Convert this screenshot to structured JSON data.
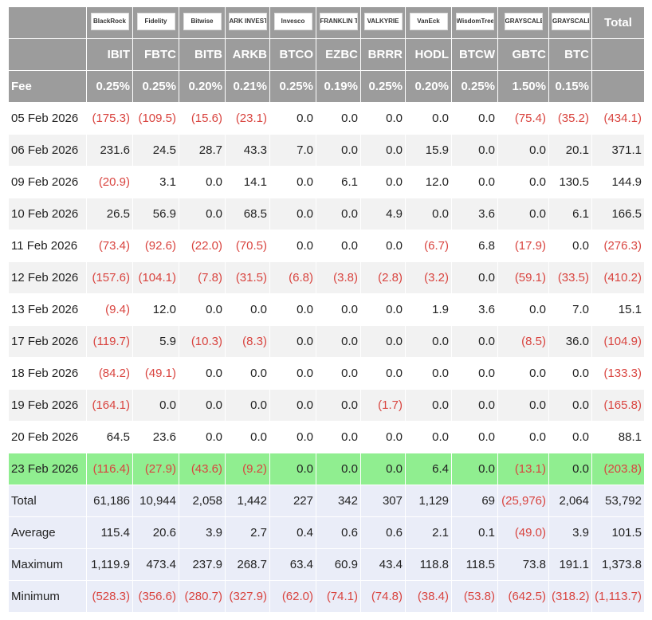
{
  "header": {
    "logos": [
      "BlackRock",
      "Fidelity",
      "Bitwise",
      "ARK INVEST",
      "Invesco",
      "FRANKLIN TEMPLETON",
      "VALKYRIE",
      "VanEck",
      "WisdomTree",
      "GRAYSCALE",
      "GRAYSCALE"
    ],
    "total_label": "Total",
    "tickers": [
      "IBIT",
      "FBTC",
      "BITB",
      "ARKB",
      "BTCO",
      "EZBC",
      "BRRR",
      "HODL",
      "BTCW",
      "GBTC",
      "BTC"
    ],
    "fee_label": "Fee",
    "fees": [
      "0.25%",
      "0.25%",
      "0.20%",
      "0.21%",
      "0.25%",
      "0.19%",
      "0.25%",
      "0.20%",
      "0.25%",
      "1.50%",
      "0.15%"
    ]
  },
  "rows": [
    {
      "label": "05 Feb 2026",
      "values": [
        "(175.3)",
        "(109.5)",
        "(15.6)",
        "(23.1)",
        "0.0",
        "0.0",
        "0.0",
        "0.0",
        "0.0",
        "(75.4)",
        "(35.2)",
        "(434.1)"
      ]
    },
    {
      "label": "06 Feb 2026",
      "values": [
        "231.6",
        "24.5",
        "28.7",
        "43.3",
        "7.0",
        "0.0",
        "0.0",
        "15.9",
        "0.0",
        "0.0",
        "20.1",
        "371.1"
      ]
    },
    {
      "label": "09 Feb 2026",
      "values": [
        "(20.9)",
        "3.1",
        "0.0",
        "14.1",
        "0.0",
        "6.1",
        "0.0",
        "12.0",
        "0.0",
        "0.0",
        "130.5",
        "144.9"
      ]
    },
    {
      "label": "10 Feb 2026",
      "values": [
        "26.5",
        "56.9",
        "0.0",
        "68.5",
        "0.0",
        "0.0",
        "4.9",
        "0.0",
        "3.6",
        "0.0",
        "6.1",
        "166.5"
      ]
    },
    {
      "label": "11 Feb 2026",
      "values": [
        "(73.4)",
        "(92.6)",
        "(22.0)",
        "(70.5)",
        "0.0",
        "0.0",
        "0.0",
        "(6.7)",
        "6.8",
        "(17.9)",
        "0.0",
        "(276.3)"
      ]
    },
    {
      "label": "12 Feb 2026",
      "values": [
        "(157.6)",
        "(104.1)",
        "(7.8)",
        "(31.5)",
        "(6.8)",
        "(3.8)",
        "(2.8)",
        "(3.2)",
        "0.0",
        "(59.1)",
        "(33.5)",
        "(410.2)"
      ]
    },
    {
      "label": "13 Feb 2026",
      "values": [
        "(9.4)",
        "12.0",
        "0.0",
        "0.0",
        "0.0",
        "0.0",
        "0.0",
        "1.9",
        "3.6",
        "0.0",
        "7.0",
        "15.1"
      ]
    },
    {
      "label": "17 Feb 2026",
      "values": [
        "(119.7)",
        "5.9",
        "(10.3)",
        "(8.3)",
        "0.0",
        "0.0",
        "0.0",
        "0.0",
        "0.0",
        "(8.5)",
        "36.0",
        "(104.9)"
      ]
    },
    {
      "label": "18 Feb 2026",
      "values": [
        "(84.2)",
        "(49.1)",
        "0.0",
        "0.0",
        "0.0",
        "0.0",
        "0.0",
        "0.0",
        "0.0",
        "0.0",
        "0.0",
        "(133.3)"
      ]
    },
    {
      "label": "19 Feb 2026",
      "values": [
        "(164.1)",
        "0.0",
        "0.0",
        "0.0",
        "0.0",
        "0.0",
        "(1.7)",
        "0.0",
        "0.0",
        "0.0",
        "0.0",
        "(165.8)"
      ]
    },
    {
      "label": "20 Feb 2026",
      "values": [
        "64.5",
        "23.6",
        "0.0",
        "0.0",
        "0.0",
        "0.0",
        "0.0",
        "0.0",
        "0.0",
        "0.0",
        "0.0",
        "88.1"
      ]
    },
    {
      "label": "23 Feb 2026",
      "highlight_color": "#90ee90",
      "values": [
        "(116.4)",
        "(27.9)",
        "(43.6)",
        "(9.2)",
        "0.0",
        "0.0",
        "0.0",
        "6.4",
        "0.0",
        "(13.1)",
        "0.0",
        "(203.8)"
      ]
    }
  ],
  "summary": [
    {
      "label": "Total",
      "values": [
        "61,186",
        "10,944",
        "2,058",
        "1,442",
        "227",
        "342",
        "307",
        "1,129",
        "69",
        "(25,976)",
        "2,064",
        "53,792"
      ]
    },
    {
      "label": "Average",
      "values": [
        "115.4",
        "20.6",
        "3.9",
        "2.7",
        "0.4",
        "0.6",
        "0.6",
        "2.1",
        "0.1",
        "(49.0)",
        "3.9",
        "101.5"
      ]
    },
    {
      "label": "Maximum",
      "values": [
        "1,119.9",
        "473.4",
        "237.9",
        "268.7",
        "63.4",
        "60.9",
        "43.4",
        "118.8",
        "118.5",
        "73.8",
        "191.1",
        "1,373.8"
      ]
    },
    {
      "label": "Minimum",
      "values": [
        "(528.3)",
        "(356.6)",
        "(280.7)",
        "(327.9)",
        "(62.0)",
        "(74.1)",
        "(74.8)",
        "(38.4)",
        "(53.8)",
        "(642.5)",
        "(318.2)",
        "(1,113.7)"
      ]
    }
  ]
}
